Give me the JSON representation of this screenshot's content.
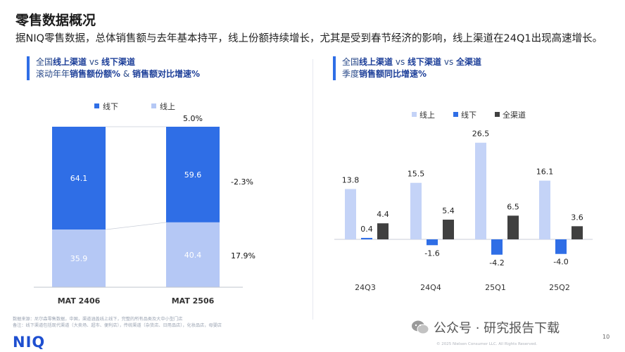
{
  "header": {
    "title": "零售数据概况",
    "subtitle": "据NIQ零售数据，总体销售额与去年基本持平，线上份额持续增长，尤其是受到春节经济的影响，线上渠道在24Q1出现高速增长。"
  },
  "left_panel": {
    "line1_pre": "全国",
    "line1_b1": "线上渠道",
    "line1_mid": " vs ",
    "line1_b2": "线下渠道",
    "line2_pre": "滚动年年",
    "line2_b1": "销售额份额%",
    "line2_mid": " & ",
    "line2_b2": "销售额对比增速%"
  },
  "right_panel": {
    "line1_pre": "全国",
    "line1_b1": "线上渠道",
    "line1_mid1": " vs ",
    "line1_b2": "线下渠道",
    "line1_mid2": " vs ",
    "line1_b3": "全渠道",
    "line2_pre": "季度",
    "line2_b1": "销售额同比增速%"
  },
  "chart_data": [
    {
      "type": "bar",
      "stacked": true,
      "categories": [
        "MAT 2406",
        "MAT 2506"
      ],
      "series": [
        {
          "name": "线下",
          "values": [
            64.1,
            59.6
          ],
          "color": "#2f6ee6"
        },
        {
          "name": "线上",
          "values": [
            35.9,
            40.4
          ],
          "color": "#b5c8f5"
        }
      ],
      "growth_labels": {
        "total": "5.0%",
        "offline": "-2.3%",
        "online": "17.9%"
      },
      "legend": "top",
      "ylim": [
        0,
        100
      ]
    },
    {
      "type": "bar",
      "categories": [
        "24Q3",
        "24Q4",
        "25Q1",
        "25Q2"
      ],
      "series": [
        {
          "name": "线上",
          "values": [
            13.8,
            15.5,
            26.5,
            16.1
          ],
          "color": "#c4d3f7"
        },
        {
          "name": "线下",
          "values": [
            0.4,
            -1.6,
            -4.2,
            -4.0
          ],
          "color": "#2f6ee6"
        },
        {
          "name": "全渠道",
          "values": [
            4.4,
            5.4,
            6.5,
            3.6
          ],
          "color": "#404040"
        }
      ],
      "legend": "top",
      "ylim": [
        -6,
        30
      ]
    }
  ],
  "footnote": {
    "line1": "数据来源：尼尔森零售数据，中国，渠道涵盖线上线下，完整的所有品类及大中小型门店",
    "line2": "备注：线下渠道包括现代渠道（大卖场、超市、便利店），传统渠道（杂货店、日用品店），化妆品店，母婴店"
  },
  "branding": {
    "logo": "NIQ",
    "wechat": "公众号 · 研究报告下载",
    "copyright": "© 2025 Nielsen Consumer LLC. All Rights Reserved.",
    "page": "10"
  }
}
